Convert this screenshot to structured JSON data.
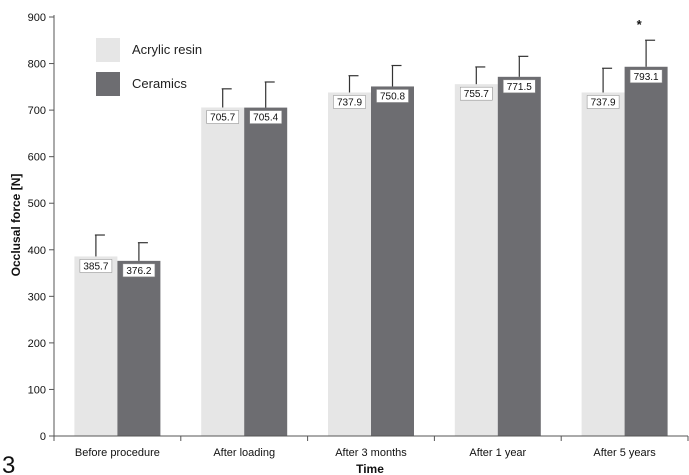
{
  "panel_label": "3",
  "chart_data": {
    "type": "bar",
    "xlabel": "Time",
    "ylabel": "Occlusal force [N]",
    "ylim": [
      0,
      900
    ],
    "yticks": [
      0,
      100,
      200,
      300,
      400,
      500,
      600,
      700,
      800,
      900
    ],
    "categories": [
      "Before procedure",
      "After loading",
      "After 3 months",
      "After 1 year",
      "After 5 years"
    ],
    "series": [
      {
        "name": "Acrylic resin",
        "color": "#e6e6e6",
        "values": [
          385.7,
          705.7,
          737.9,
          755.7,
          737.9
        ],
        "errors": [
          46,
          40,
          36,
          37,
          52
        ],
        "value_labels": [
          "385.7",
          "705.7",
          "737.9",
          "755.7",
          "737.9"
        ]
      },
      {
        "name": "Ceramics",
        "color": "#6d6d71",
        "values": [
          376.2,
          705.4,
          750.8,
          771.5,
          793.1
        ],
        "errors": [
          39,
          55,
          45,
          44,
          57
        ],
        "value_labels": [
          "376.2",
          "705.4",
          "750.8",
          "771.5",
          "793.1"
        ]
      }
    ],
    "annotations": [
      {
        "text": "*",
        "category": "After 5 years",
        "series": "Ceramics"
      }
    ],
    "legend": {
      "placement": "top-left"
    },
    "grid": false
  }
}
